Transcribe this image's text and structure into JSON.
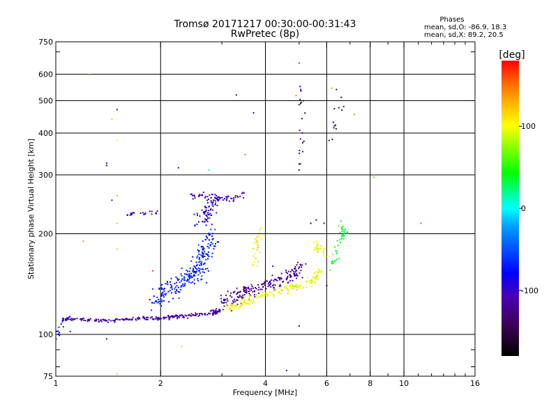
{
  "chart_data": {
    "type": "scatter",
    "title": "Tromsø 20171217 00:30:00-00:31:43",
    "subtitle": "RwPretec (8p)",
    "stats": {
      "heading": "Phases",
      "line1": "mean, sd,O: -86.9, 18.3",
      "line2": "mean, sd,X:  89.2, 20.5"
    },
    "xlabel": "Frequency [MHz]",
    "ylabel": "Stationary phase Virtual Height [km]",
    "xscale": "log",
    "yscale": "log",
    "xlim": [
      1,
      16
    ],
    "ylim": [
      75,
      750
    ],
    "xticks": [
      1,
      2,
      4,
      6,
      8,
      10,
      16
    ],
    "xtick_labels": [
      "1",
      "2",
      "4",
      "6",
      "8",
      "10",
      "16"
    ],
    "yticks": [
      75,
      100,
      200,
      300,
      400,
      500,
      600,
      750
    ],
    "ytick_labels": [
      "75",
      "100",
      "200",
      "300",
      "400",
      "500",
      "600",
      "750"
    ],
    "grid": true,
    "colorbar": {
      "label": "[deg]",
      "range": [
        -180,
        180
      ],
      "ticks": [
        100,
        0,
        -100
      ],
      "tick_labels": [
        "100",
        "0",
        "-100"
      ]
    },
    "clusters": [
      {
        "points": [
          [
            1.05,
            111
          ],
          [
            1.15,
            111
          ],
          [
            1.3,
            110
          ],
          [
            1.45,
            110
          ],
          [
            1.6,
            111
          ],
          [
            1.8,
            112
          ],
          [
            2.0,
            112
          ],
          [
            2.2,
            113
          ],
          [
            2.5,
            114
          ],
          [
            2.8,
            116
          ],
          [
            3.0,
            118
          ]
        ],
        "phase": -115,
        "spread_f": 0.02,
        "spread_h": 0.012,
        "count": 240
      },
      {
        "points": [
          [
            1.0,
            98
          ],
          [
            1.03,
            103
          ],
          [
            1.06,
            112
          ]
        ],
        "phase": -95,
        "spread_f": 0.015,
        "spread_h": 0.02,
        "count": 14
      },
      {
        "points": [
          [
            1.9,
            125
          ],
          [
            2.1,
            135
          ],
          [
            2.3,
            145
          ],
          [
            2.5,
            150
          ],
          [
            2.6,
            160
          ],
          [
            2.7,
            180
          ],
          [
            2.8,
            200
          ]
        ],
        "phase": -80,
        "spread_f": 0.06,
        "spread_h": 0.06,
        "count": 260
      },
      {
        "points": [
          [
            2.6,
            215
          ],
          [
            2.7,
            230
          ],
          [
            2.8,
            245
          ],
          [
            2.9,
            255
          ]
        ],
        "phase": -100,
        "spread_f": 0.05,
        "spread_h": 0.05,
        "count": 70
      },
      {
        "points": [
          [
            2.4,
            260
          ],
          [
            2.7,
            260
          ],
          [
            3.0,
            255
          ],
          [
            3.3,
            255
          ],
          [
            3.5,
            265
          ]
        ],
        "phase": -105,
        "spread_f": 0.03,
        "spread_h": 0.02,
        "count": 60
      },
      {
        "points": [
          [
            1.6,
            228
          ],
          [
            1.8,
            230
          ],
          [
            2.0,
            232
          ]
        ],
        "phase": -110,
        "spread_f": 0.03,
        "spread_h": 0.015,
        "count": 22
      },
      {
        "points": [
          [
            3.0,
            125
          ],
          [
            3.3,
            130
          ],
          [
            3.6,
            135
          ],
          [
            4.0,
            140
          ],
          [
            4.4,
            145
          ],
          [
            4.8,
            150
          ],
          [
            5.0,
            160
          ]
        ],
        "phase": -120,
        "spread_f": 0.04,
        "spread_h": 0.05,
        "count": 200
      },
      {
        "points": [
          [
            3.1,
            120
          ],
          [
            3.4,
            124
          ],
          [
            3.7,
            128
          ],
          [
            4.0,
            132
          ],
          [
            4.5,
            136
          ],
          [
            5.0,
            140
          ],
          [
            5.5,
            145
          ],
          [
            5.8,
            155
          ]
        ],
        "phase": 105,
        "spread_f": 0.03,
        "spread_h": 0.03,
        "count": 180
      },
      {
        "points": [
          [
            3.7,
            160
          ],
          [
            3.8,
            190
          ],
          [
            3.9,
            200
          ]
        ],
        "phase": 110,
        "spread_f": 0.03,
        "spread_h": 0.04,
        "count": 30
      },
      {
        "points": [
          [
            5.5,
            185
          ],
          [
            5.7,
            180
          ],
          [
            6.0,
            175
          ]
        ],
        "phase": 100,
        "spread_f": 0.03,
        "spread_h": 0.03,
        "count": 25
      },
      {
        "points": [
          [
            6.2,
            160
          ],
          [
            6.4,
            175
          ],
          [
            6.5,
            190
          ],
          [
            6.6,
            200
          ],
          [
            6.7,
            210
          ]
        ],
        "phase": 40,
        "spread_f": 0.03,
        "spread_h": 0.04,
        "count": 45
      },
      {
        "points": [
          [
            5.0,
            300
          ],
          [
            5.1,
            400
          ],
          [
            5.1,
            500
          ],
          [
            5.0,
            550
          ]
        ],
        "phase": -140,
        "spread_f": 0.02,
        "spread_h": 0.05,
        "count": 20
      },
      {
        "points": [
          [
            6.2,
            350
          ],
          [
            6.4,
            450
          ],
          [
            6.5,
            500
          ]
        ],
        "phase": -130,
        "spread_f": 0.03,
        "spread_h": 0.05,
        "count": 12
      }
    ],
    "outliers": [
      {
        "f": 1.25,
        "h": 598,
        "phase": 140
      },
      {
        "f": 1.5,
        "h": 470,
        "phase": -100
      },
      {
        "f": 1.45,
        "h": 440,
        "phase": 120
      },
      {
        "f": 1.5,
        "h": 380,
        "phase": 110
      },
      {
        "f": 1.4,
        "h": 325,
        "phase": -140
      },
      {
        "f": 1.4,
        "h": 320,
        "phase": -140
      },
      {
        "f": 2.25,
        "h": 315,
        "phase": -110
      },
      {
        "f": 2.75,
        "h": 310,
        "phase": 10
      },
      {
        "f": 3.3,
        "h": 520,
        "phase": -110
      },
      {
        "f": 3.7,
        "h": 460,
        "phase": -110
      },
      {
        "f": 3.5,
        "h": 345,
        "phase": 150
      },
      {
        "f": 1.45,
        "h": 252,
        "phase": -110
      },
      {
        "f": 1.5,
        "h": 260,
        "phase": 130
      },
      {
        "f": 1.5,
        "h": 215,
        "phase": 120
      },
      {
        "f": 1.2,
        "h": 190,
        "phase": 140
      },
      {
        "f": 1.5,
        "h": 180,
        "phase": 120
      },
      {
        "f": 2.3,
        "h": 92,
        "phase": 120
      },
      {
        "f": 1.5,
        "h": 76,
        "phase": 120
      },
      {
        "f": 1.4,
        "h": 97,
        "phase": -120
      },
      {
        "f": 1.1,
        "h": 102,
        "phase": -80
      },
      {
        "f": 8.2,
        "h": 295,
        "phase": 60
      },
      {
        "f": 11.2,
        "h": 215,
        "phase": 160
      },
      {
        "f": 5.0,
        "h": 648,
        "phase": 170
      },
      {
        "f": 4.9,
        "h": 518,
        "phase": 150
      },
      {
        "f": 5.05,
        "h": 540,
        "phase": -110
      },
      {
        "f": 7.2,
        "h": 455,
        "phase": 140
      },
      {
        "f": 6.4,
        "h": 540,
        "phase": -150
      },
      {
        "f": 6.2,
        "h": 545,
        "phase": 140
      },
      {
        "f": 5.4,
        "h": 215,
        "phase": -140
      },
      {
        "f": 5.6,
        "h": 220,
        "phase": -120
      },
      {
        "f": 5.9,
        "h": 215,
        "phase": -120
      },
      {
        "f": 5.0,
        "h": 106,
        "phase": -100
      },
      {
        "f": 4.6,
        "h": 78,
        "phase": -120
      },
      {
        "f": 1.9,
        "h": 155,
        "phase": 170
      },
      {
        "f": 4.2,
        "h": 160,
        "phase": -120
      },
      {
        "f": 6.0,
        "h": 140,
        "phase": -140
      }
    ]
  },
  "colors": {
    "background": "#ffffff",
    "grid": "#000000",
    "colormap": [
      "#000000",
      "#3c0050",
      "#4b00b4",
      "#0000ff",
      "#0050ff",
      "#00a0ff",
      "#00ffff",
      "#00ff80",
      "#00ff00",
      "#80ff00",
      "#ffff00",
      "#ffb000",
      "#ff6000",
      "#ff0000"
    ]
  }
}
